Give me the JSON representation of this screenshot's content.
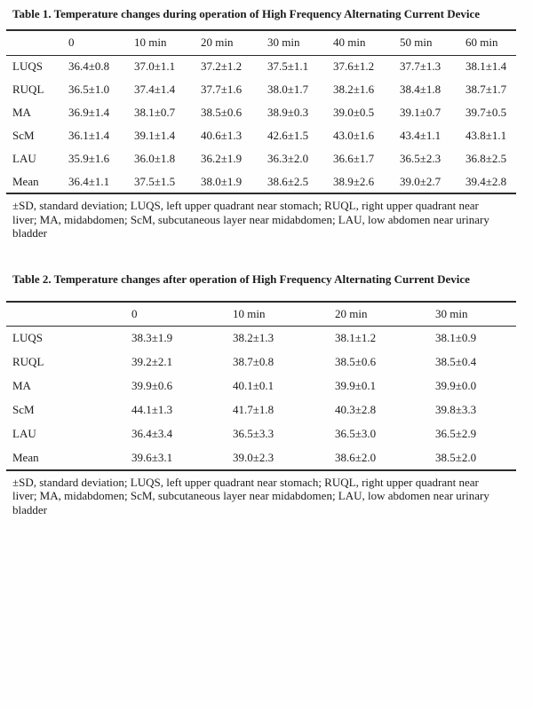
{
  "page": {
    "background": "#fefefe",
    "text_color": "#1c1c1c",
    "rule_color": "#2b2b2b"
  },
  "tables": [
    {
      "title": "Table 1. Temperature changes during operation of High Frequency Alternating Current Device",
      "columns": [
        "",
        "0",
        "10 min",
        "20 min",
        "30 min",
        "40 min",
        "50 min",
        "60 min"
      ],
      "rows": [
        {
          "label": "LUQS",
          "values": [
            "36.4±0.8",
            "37.0±1.1",
            "37.2±1.2",
            "37.5±1.1",
            "37.6±1.2",
            "37.7±1.3",
            "38.1±1.4"
          ]
        },
        {
          "label": "RUQL",
          "values": [
            "36.5±1.0",
            "37.4±1.4",
            "37.7±1.6",
            "38.0±1.7",
            "38.2±1.6",
            "38.4±1.8",
            "38.7±1.7"
          ]
        },
        {
          "label": "MA",
          "values": [
            "36.9±1.4",
            "38.1±0.7",
            "38.5±0.6",
            "38.9±0.3",
            "39.0±0.5",
            "39.1±0.7",
            "39.7±0.5"
          ]
        },
        {
          "label": "ScM",
          "values": [
            "36.1±1.4",
            "39.1±1.4",
            "40.6±1.3",
            "42.6±1.5",
            "43.0±1.6",
            "43.4±1.1",
            "43.8±1.1"
          ]
        },
        {
          "label": "LAU",
          "values": [
            "35.9±1.6",
            "36.0±1.8",
            "36.2±1.9",
            "36.3±2.0",
            "36.6±1.7",
            "36.5±2.3",
            "36.8±2.5"
          ]
        },
        {
          "label": "Mean",
          "values": [
            "36.4±1.1",
            "37.5±1.5",
            "38.0±1.9",
            "38.6±2.5",
            "38.9±2.6",
            "39.0±2.7",
            "39.4±2.8"
          ]
        }
      ],
      "footnote_lines": [
        "±SD, standard deviation; LUQS, left upper quadrant near stomach; RUQL, right upper quadrant near",
        "liver; MA, midabdomen; ScM, subcutaneous layer near midabdomen; LAU, low abdomen near urinary",
        "bladder"
      ]
    },
    {
      "title": "Table 2. Temperature changes after operation of High Frequency Alternating Current Device",
      "columns": [
        "",
        "0",
        "10 min",
        "20 min",
        "30 min"
      ],
      "rows": [
        {
          "label": "LUQS",
          "values": [
            "38.3±1.9",
            "38.2±1.3",
            "38.1±1.2",
            "38.1±0.9"
          ]
        },
        {
          "label": "RUQL",
          "values": [
            "39.2±2.1",
            "38.7±0.8",
            "38.5±0.6",
            "38.5±0.4"
          ]
        },
        {
          "label": "MA",
          "values": [
            "39.9±0.6",
            "40.1±0.1",
            "39.9±0.1",
            "39.9±0.0"
          ]
        },
        {
          "label": "ScM",
          "values": [
            "44.1±1.3",
            "41.7±1.8",
            "40.3±2.8",
            "39.8±3.3"
          ]
        },
        {
          "label": "LAU",
          "values": [
            "36.4±3.4",
            "36.5±3.3",
            "36.5±3.0",
            "36.5±2.9"
          ]
        },
        {
          "label": "Mean",
          "values": [
            "39.6±3.1",
            "39.0±2.3",
            "38.6±2.0",
            "38.5±2.0"
          ]
        }
      ],
      "footnote_lines": [
        "±SD, standard deviation; LUQS, left upper quadrant near stomach; RUQL, right upper quadrant near",
        "liver; MA, midabdomen; ScM, subcutaneous layer near midabdomen; LAU, low abdomen near urinary",
        "bladder"
      ]
    }
  ]
}
